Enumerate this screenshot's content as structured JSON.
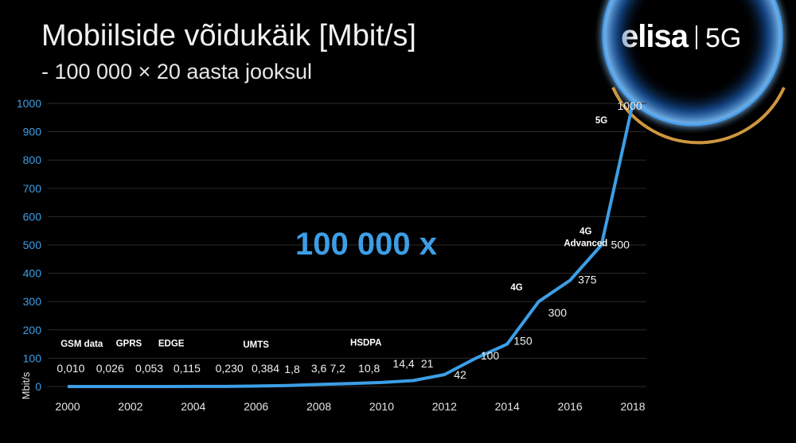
{
  "header": {
    "title": "Mobiilside võidukäik [Mbit/s]",
    "subtitle": "- 100 000 × 20 aasta jooksul",
    "logo_word": "elisa",
    "logo_tag": "5G"
  },
  "colors": {
    "line": "#3d9ee6",
    "tick": "#3d9ee6",
    "bg": "#000000",
    "gridline": "#2b2b2b"
  },
  "chart_data": {
    "type": "line",
    "ylabel": "Mbit/s",
    "ylim": [
      0,
      1000
    ],
    "yticks": [
      0,
      100,
      200,
      300,
      400,
      500,
      600,
      700,
      800,
      900,
      1000
    ],
    "xlim": [
      2000,
      2018
    ],
    "xticks": [
      2000,
      2002,
      2004,
      2006,
      2008,
      2010,
      2012,
      2014,
      2016,
      2018
    ],
    "grid": true,
    "highlight": "100 000 x",
    "series": [
      {
        "x": [
          2000,
          2001,
          2002,
          2003,
          2004,
          2005,
          2006,
          2007,
          2008,
          2009,
          2010,
          2011,
          2012,
          2013,
          2014,
          2015,
          2016,
          2017,
          2018
        ],
        "y": [
          0.01,
          0.026,
          0.053,
          0.115,
          0.23,
          0.384,
          1.8,
          3.6,
          7.2,
          10.8,
          14.4,
          21,
          42,
          100,
          150,
          300,
          375,
          500,
          1000
        ]
      }
    ],
    "value_labels": [
      {
        "text": "0,010",
        "x": 2000.1,
        "y": 50
      },
      {
        "text": "0,026",
        "x": 2001.35,
        "y": 50
      },
      {
        "text": "0,053",
        "x": 2002.6,
        "y": 50
      },
      {
        "text": "0,115",
        "x": 2003.8,
        "y": 50
      },
      {
        "text": "0,230",
        "x": 2005.15,
        "y": 50
      },
      {
        "text": "0,384",
        "x": 2006.3,
        "y": 50
      },
      {
        "text": "1,8",
        "x": 2007.15,
        "y": 48
      },
      {
        "text": "3,6",
        "x": 2008.0,
        "y": 50
      },
      {
        "text": "7,2",
        "x": 2008.6,
        "y": 50
      },
      {
        "text": "10,8",
        "x": 2009.6,
        "y": 50
      },
      {
        "text": "14,4",
        "x": 2010.7,
        "y": 68
      },
      {
        "text": "21",
        "x": 2011.45,
        "y": 68
      },
      {
        "text": "42",
        "x": 2012.5,
        "y": 28
      },
      {
        "text": "100",
        "x": 2013.45,
        "y": 96
      },
      {
        "text": "150",
        "x": 2014.5,
        "y": 148
      },
      {
        "text": "300",
        "x": 2015.6,
        "y": 247
      },
      {
        "text": "375",
        "x": 2016.55,
        "y": 364
      },
      {
        "text": "500",
        "x": 2017.6,
        "y": 488
      },
      {
        "text": "1000",
        "x": 2017.9,
        "y": 978
      }
    ],
    "tech_labels": [
      {
        "lines": [
          "GSM data"
        ],
        "x": 2000.45,
        "y": 140
      },
      {
        "lines": [
          "GPRS"
        ],
        "x": 2001.95,
        "y": 142
      },
      {
        "lines": [
          "EDGE"
        ],
        "x": 2003.3,
        "y": 142
      },
      {
        "lines": [
          "UMTS"
        ],
        "x": 2006.0,
        "y": 138
      },
      {
        "lines": [
          "HSDPA"
        ],
        "x": 2009.5,
        "y": 145
      },
      {
        "lines": [
          "4G"
        ],
        "x": 2014.3,
        "y": 340
      },
      {
        "lines": [
          "4G",
          "Advanced"
        ],
        "x": 2016.5,
        "y": 538
      },
      {
        "lines": [
          "5G"
        ],
        "x": 2017.0,
        "y": 930
      }
    ]
  }
}
